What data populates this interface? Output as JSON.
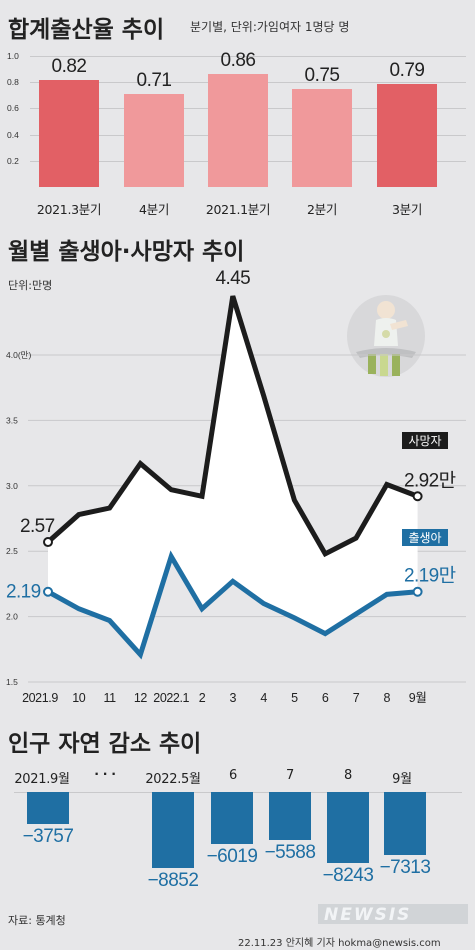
{
  "chart_data": [
    {
      "type": "bar",
      "title": "합계출산율 추이",
      "subtitle": "분기별, 단위:가임여자 1명당 명",
      "categories": [
        "2021.3분기",
        "4분기",
        "2021.1분기",
        "2분기",
        "3분기"
      ],
      "values": [
        0.82,
        0.71,
        0.86,
        0.75,
        0.79
      ],
      "value_labels": [
        "0.82",
        "0.71",
        "0.86",
        "0.75",
        "0.79"
      ],
      "yticks": [
        "1.0",
        "0.8",
        "0.6",
        "0.4",
        "0.2"
      ],
      "ylim": [
        0,
        1.0
      ],
      "colors": [
        "#e26065",
        "#f0999b",
        "#f0999b",
        "#f0999b",
        "#e26065"
      ]
    },
    {
      "type": "line",
      "title": "월별 출생아·사망자 추이",
      "unit": "단위:만명",
      "x": [
        "2021.9",
        "10",
        "11",
        "12",
        "2022.1",
        "2",
        "3",
        "4",
        "5",
        "6",
        "7",
        "8",
        "9월"
      ],
      "ylim": [
        1.5,
        4.5
      ],
      "yticks": [
        "4.0(만)",
        "3.5",
        "3.0",
        "2.5",
        "2.0",
        "1.5"
      ],
      "ytick_values": [
        4.0,
        3.5,
        3.0,
        2.5,
        2.0,
        1.5
      ],
      "series": [
        {
          "name": "사망자",
          "color": "#1c1c1c",
          "values": [
            2.57,
            2.78,
            2.83,
            3.17,
            2.97,
            2.92,
            4.45,
            3.69,
            2.89,
            2.48,
            2.6,
            3.01,
            2.92
          ]
        },
        {
          "name": "출생아",
          "color": "#1f6fa3",
          "values": [
            2.19,
            2.06,
            1.97,
            1.71,
            2.46,
            2.06,
            2.27,
            2.1,
            1.99,
            1.87,
            2.02,
            2.17,
            2.19
          ]
        }
      ],
      "labels": {
        "death_first": "2.57",
        "death_peak": "4.45",
        "death_last": "2.92만",
        "birth_first": "2.19",
        "birth_last": "2.19만"
      }
    },
    {
      "type": "bar",
      "title": "인구 자연 감소 추이",
      "categories": [
        "2021.9월",
        "2022.5월",
        "6",
        "7",
        "8",
        "9월"
      ],
      "values": [
        -3757,
        -8852,
        -6019,
        -5588,
        -8243,
        -7313
      ],
      "value_labels": [
        "−3757",
        "−8852",
        "−6019",
        "−5588",
        "−8243",
        "−7313"
      ],
      "ellipsis": "· · ·",
      "color": "#1f6fa3"
    }
  ],
  "source": "자료: 통계청",
  "credit": "22.11.23 안지혜 기자 hokma@newsis.com",
  "logo": "NEWSIS",
  "icons": [
    "baby-in-high-chair-icon"
  ]
}
